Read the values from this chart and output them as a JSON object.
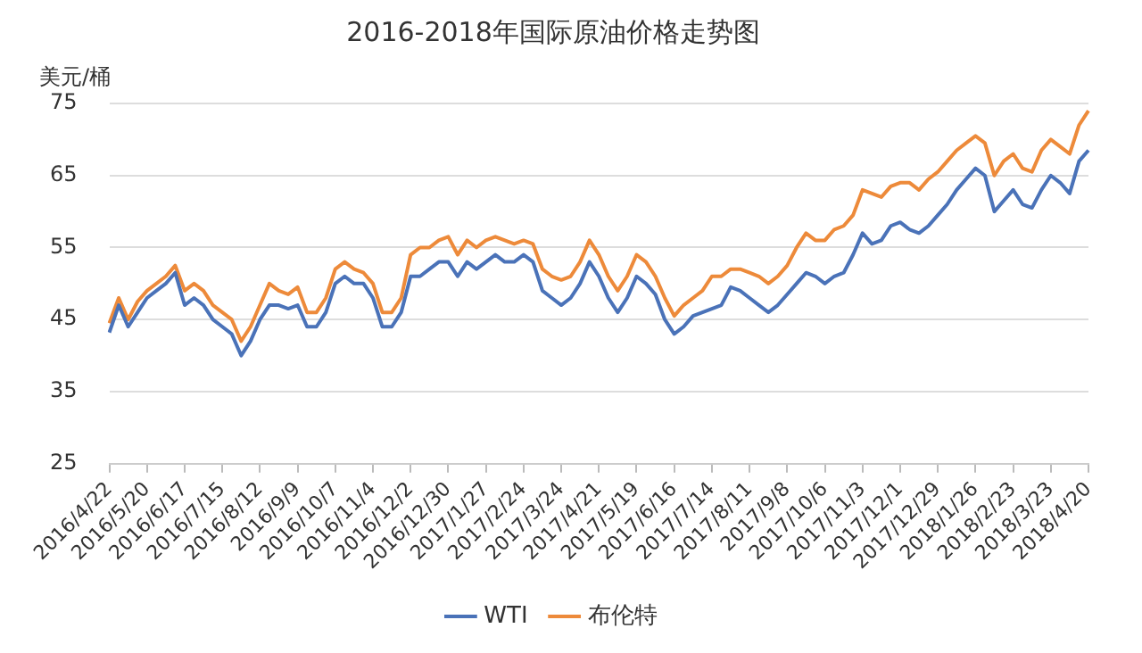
{
  "chart_data": {
    "type": "line",
    "title": "2016-2018年国际原油价格走势图",
    "ylabel": "美元/桶",
    "categories": [
      "2016/4/22",
      null,
      null,
      null,
      "2016/5/20",
      null,
      null,
      null,
      "2016/6/17",
      null,
      null,
      null,
      "2016/7/15",
      null,
      null,
      null,
      "2016/8/12",
      null,
      null,
      null,
      "2016/9/9",
      null,
      null,
      null,
      "2016/10/7",
      null,
      null,
      null,
      "2016/11/4",
      null,
      null,
      null,
      "2016/12/2",
      null,
      null,
      null,
      "2016/12/30",
      null,
      null,
      null,
      "2017/1/27",
      null,
      null,
      null,
      "2017/2/24",
      null,
      null,
      null,
      "2017/3/24",
      null,
      null,
      null,
      "2017/4/21",
      null,
      null,
      null,
      "2017/5/19",
      null,
      null,
      null,
      "2017/6/16",
      null,
      null,
      null,
      "2017/7/14",
      null,
      null,
      null,
      "2017/8/11",
      null,
      null,
      null,
      "2017/9/8",
      null,
      null,
      null,
      "2017/10/6",
      null,
      null,
      null,
      "2017/11/3",
      null,
      null,
      null,
      "2017/12/1",
      null,
      null,
      null,
      "2017/12/29",
      null,
      null,
      null,
      "2018/1/26",
      null,
      null,
      null,
      "2018/2/23",
      null,
      null,
      null,
      "2018/3/23",
      null,
      null,
      null,
      "2018/4/20"
    ],
    "series": [
      {
        "name": "WTI",
        "color": "#4a72b8",
        "values": [
          43.2,
          47,
          44,
          46,
          48,
          49,
          50,
          51.5,
          47,
          48,
          47,
          45,
          44,
          43,
          40,
          42,
          45,
          47,
          47,
          46.5,
          47,
          44,
          44,
          46,
          50,
          51,
          50,
          50,
          48,
          44,
          44,
          46,
          51,
          51,
          52,
          53,
          53,
          51,
          53,
          52,
          53,
          54,
          53,
          53,
          54,
          53,
          49,
          48,
          47,
          48,
          50,
          53,
          51,
          48,
          46,
          48,
          51,
          50,
          48.5,
          45,
          43,
          44,
          45.5,
          46,
          46.5,
          47,
          49.5,
          49,
          48,
          47,
          46,
          47,
          48.5,
          50,
          51.5,
          51,
          50,
          51,
          51.5,
          54,
          57,
          55.5,
          56,
          58,
          58.5,
          57.5,
          57,
          58,
          59.5,
          61,
          63,
          64.5,
          66,
          65,
          60,
          61.5,
          63,
          61,
          60.5,
          63,
          65,
          64,
          62.5,
          67,
          68.5
        ]
      },
      {
        "name": "布伦特",
        "color": "#ed8a3a",
        "values": [
          44.5,
          48,
          45,
          47.5,
          49,
          50,
          51,
          52.5,
          49,
          50,
          49,
          47,
          46,
          45,
          42,
          44,
          47,
          50,
          49,
          48.5,
          49.5,
          46,
          46,
          48,
          52,
          53,
          52,
          51.5,
          50,
          46,
          46,
          48,
          54,
          55,
          55,
          56,
          56.5,
          54,
          56,
          55,
          56,
          56.5,
          56,
          55.5,
          56,
          55.5,
          52,
          51,
          50.5,
          51,
          53,
          56,
          54,
          51,
          49,
          51,
          54,
          53,
          51,
          48,
          45.5,
          47,
          48,
          49,
          51,
          51,
          52,
          52,
          51.5,
          51,
          50,
          51,
          52.5,
          55,
          57,
          56,
          56,
          57.5,
          58,
          59.5,
          63,
          62.5,
          62,
          63.5,
          64,
          64,
          63,
          64.5,
          65.5,
          67,
          68.5,
          69.5,
          70.5,
          69.5,
          65,
          67,
          68,
          66,
          65.5,
          68.5,
          70,
          69,
          68,
          72,
          74
        ]
      }
    ],
    "ylim": [
      25,
      75
    ],
    "yticks": [
      25,
      35,
      45,
      55,
      65,
      75
    ],
    "grid": "y",
    "legend": "bottom",
    "marker": "none",
    "line_style": "solid"
  }
}
